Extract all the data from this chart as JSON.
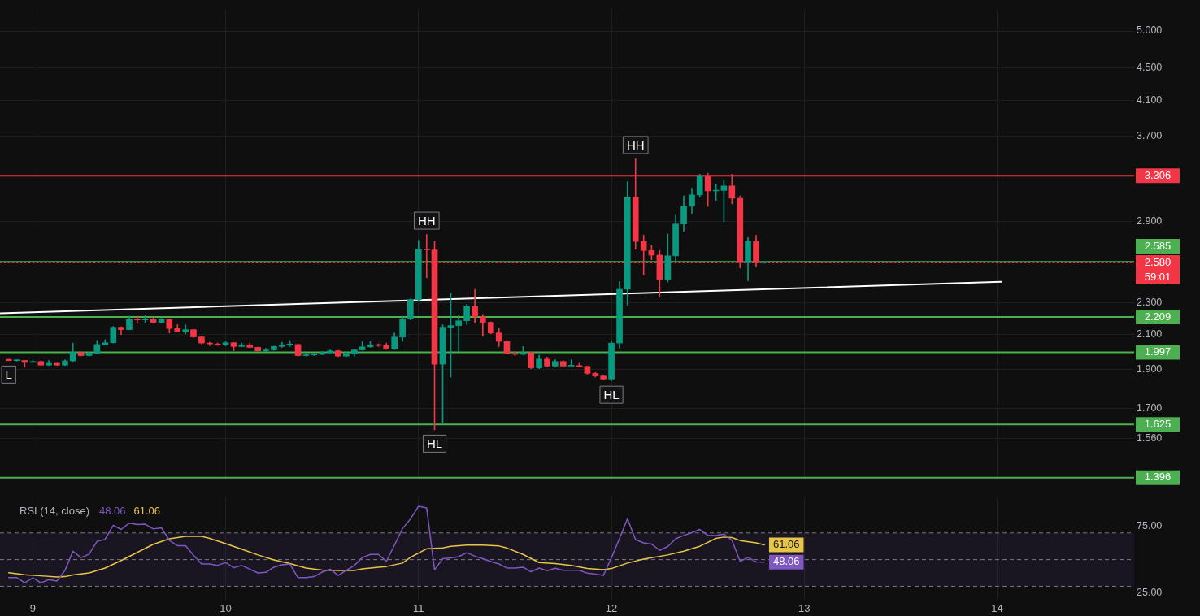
{
  "chart_data": [
    {
      "type": "candlestick",
      "x": [
        8.875,
        8.917,
        8.958,
        9,
        9.042,
        9.083,
        9.125,
        9.167,
        9.208,
        9.25,
        9.292,
        9.333,
        9.375,
        9.417,
        9.458,
        9.5,
        9.542,
        9.583,
        9.625,
        9.667,
        9.708,
        9.75,
        9.792,
        9.833,
        9.875,
        9.917,
        9.958,
        10,
        10.042,
        10.083,
        10.125,
        10.167,
        10.208,
        10.25,
        10.292,
        10.333,
        10.375,
        10.417,
        10.458,
        10.5,
        10.542,
        10.583,
        10.625,
        10.667,
        10.708,
        10.75,
        10.792,
        10.833,
        10.875,
        10.917,
        10.958,
        11,
        11.042,
        11.083,
        11.125,
        11.167,
        11.208,
        11.25,
        11.292,
        11.333,
        11.375,
        11.417,
        11.458,
        11.5,
        11.542,
        11.583,
        11.625,
        11.667,
        11.708,
        11.75,
        11.792,
        11.833,
        11.875,
        11.917,
        11.958,
        12,
        12.042,
        12.083,
        12.125,
        12.167,
        12.208,
        12.25,
        12.292,
        12.333,
        12.375,
        12.417,
        12.458,
        12.5,
        12.542,
        12.583,
        12.625,
        12.667,
        12.708,
        12.75,
        12.792
      ],
      "ohlc": [
        [
          1.957,
          1.958,
          1.949,
          1.95
        ],
        [
          1.95,
          1.955,
          1.947,
          1.951
        ],
        [
          1.951,
          1.952,
          1.914,
          1.94
        ],
        [
          1.94,
          1.95,
          1.938,
          1.945
        ],
        [
          1.945,
          1.948,
          1.922,
          1.925
        ],
        [
          1.925,
          1.95,
          1.922,
          1.935
        ],
        [
          1.935,
          1.936,
          1.923,
          1.925
        ],
        [
          1.925,
          1.955,
          1.922,
          1.948
        ],
        [
          1.948,
          2.05,
          1.944,
          1.996
        ],
        [
          1.996,
          1.998,
          1.976,
          1.978
        ],
        [
          1.978,
          1.998,
          1.975,
          1.992
        ],
        [
          1.992,
          2.066,
          1.99,
          2.042
        ],
        [
          2.042,
          2.07,
          2.038,
          2.052
        ],
        [
          2.052,
          2.15,
          2.05,
          2.145
        ],
        [
          2.145,
          2.148,
          2.1,
          2.13
        ],
        [
          2.13,
          2.215,
          2.13,
          2.196
        ],
        [
          2.196,
          2.215,
          2.17,
          2.19
        ],
        [
          2.19,
          2.22,
          2.175,
          2.195
        ],
        [
          2.195,
          2.205,
          2.172,
          2.175
        ],
        [
          2.175,
          2.2,
          2.17,
          2.195
        ],
        [
          2.195,
          2.197,
          2.11,
          2.137
        ],
        [
          2.137,
          2.16,
          2.116,
          2.12
        ],
        [
          2.12,
          2.16,
          2.105,
          2.13
        ],
        [
          2.13,
          2.133,
          2.082,
          2.086
        ],
        [
          2.086,
          2.09,
          2.045,
          2.05
        ],
        [
          2.05,
          2.055,
          2.035,
          2.045
        ],
        [
          2.045,
          2.05,
          2.036,
          2.04
        ],
        [
          2.04,
          2.06,
          2.034,
          2.052
        ],
        [
          2.052,
          2.054,
          2.006,
          2.03
        ],
        [
          2.03,
          2.05,
          2.028,
          2.04
        ],
        [
          2.04,
          2.05,
          2.022,
          2.025
        ],
        [
          2.025,
          2.027,
          2.003,
          2.005
        ],
        [
          2.005,
          2.02,
          2.0,
          2.01
        ],
        [
          2.01,
          2.032,
          2.007,
          2.03
        ],
        [
          2.03,
          2.055,
          2.025,
          2.04
        ],
        [
          2.04,
          2.065,
          2.03,
          2.042
        ],
        [
          2.042,
          2.046,
          1.975,
          1.978
        ],
        [
          1.978,
          1.99,
          1.975,
          1.982
        ],
        [
          1.982,
          1.99,
          1.978,
          1.985
        ],
        [
          1.985,
          2.0,
          1.982,
          1.995
        ],
        [
          1.995,
          2.01,
          1.99,
          2.005
        ],
        [
          2.005,
          2.008,
          1.972,
          1.975
        ],
        [
          1.975,
          1.998,
          1.97,
          1.99
        ],
        [
          1.99,
          2.012,
          1.975,
          2.01
        ],
        [
          2.01,
          2.058,
          2.008,
          2.028
        ],
        [
          2.028,
          2.06,
          2.025,
          2.04
        ],
        [
          2.04,
          2.045,
          2.03,
          2.036
        ],
        [
          2.036,
          2.05,
          2.012,
          2.015
        ],
        [
          2.015,
          2.11,
          2.012,
          2.085
        ],
        [
          2.085,
          2.21,
          2.06,
          2.198
        ],
        [
          2.198,
          2.325,
          2.19,
          2.32
        ],
        [
          2.32,
          2.75,
          2.31,
          2.68
        ],
        [
          2.68,
          2.795,
          2.47,
          2.675
        ],
        [
          2.675,
          2.745,
          1.6,
          1.93
        ],
        [
          1.93,
          2.16,
          1.635,
          2.145
        ],
        [
          2.145,
          2.365,
          1.86,
          2.155
        ],
        [
          2.155,
          2.22,
          2.0,
          2.185
        ],
        [
          2.185,
          2.29,
          2.16,
          2.275
        ],
        [
          2.275,
          2.39,
          2.17,
          2.21
        ],
        [
          2.21,
          2.225,
          2.09,
          2.175
        ],
        [
          2.175,
          2.178,
          2.105,
          2.11
        ],
        [
          2.11,
          2.14,
          2.03,
          2.06
        ],
        [
          2.06,
          2.065,
          1.987,
          1.99
        ],
        [
          1.99,
          2.0,
          1.978,
          1.985
        ],
        [
          1.985,
          2.03,
          1.982,
          1.995
        ],
        [
          1.995,
          1.997,
          1.905,
          1.91
        ],
        [
          1.91,
          1.98,
          1.905,
          1.958
        ],
        [
          1.958,
          1.97,
          1.915,
          1.92
        ],
        [
          1.92,
          1.955,
          1.915,
          1.945
        ],
        [
          1.945,
          1.95,
          1.915,
          1.92
        ],
        [
          1.92,
          1.955,
          1.918,
          1.922
        ],
        [
          1.922,
          1.935,
          1.915,
          1.918
        ],
        [
          1.918,
          1.92,
          1.875,
          1.88
        ],
        [
          1.88,
          1.885,
          1.86,
          1.866
        ],
        [
          1.866,
          1.87,
          1.845,
          1.85
        ],
        [
          1.85,
          2.065,
          1.84,
          2.05
        ],
        [
          2.05,
          2.445,
          2.02,
          2.39
        ],
        [
          2.39,
          3.25,
          2.285,
          3.11
        ],
        [
          3.11,
          3.47,
          2.68,
          2.74
        ],
        [
          2.74,
          2.79,
          2.49,
          2.67
        ],
        [
          2.67,
          2.71,
          2.6,
          2.635
        ],
        [
          2.635,
          2.67,
          2.34,
          2.46
        ],
        [
          2.46,
          2.8,
          2.44,
          2.63
        ],
        [
          2.63,
          2.96,
          2.59,
          2.88
        ],
        [
          2.88,
          3.12,
          2.82,
          3.03
        ],
        [
          3.03,
          3.19,
          2.97,
          3.13
        ],
        [
          3.13,
          3.32,
          3.11,
          3.3
        ],
        [
          3.3,
          3.33,
          3.03,
          3.165
        ],
        [
          3.165,
          3.23,
          3.08,
          3.17
        ],
        [
          3.17,
          3.27,
          2.9,
          3.21
        ],
        [
          3.21,
          3.32,
          3.05,
          3.1
        ],
        [
          3.1,
          3.12,
          2.54,
          2.58
        ],
        [
          2.58,
          2.77,
          2.45,
          2.74
        ],
        [
          2.74,
          2.79,
          2.55,
          2.58
        ],
        [
          2.58,
          2.59,
          2.575,
          2.58
        ]
      ],
      "series": [
        {
          "type": "line",
          "color": "#ffffff",
          "x": [
            8.83,
            14.02
          ],
          "values": [
            2.232,
            2.442
          ]
        }
      ],
      "xlim": [
        8.83,
        14.71
      ],
      "xticks": [
        9,
        10,
        11,
        12,
        13,
        14
      ],
      "ylim": [
        1.39,
        5.33
      ],
      "log": "y",
      "yticks": [
        {
          "value": 5,
          "label": "5.000"
        },
        {
          "value": 4.5,
          "label": "4.500"
        },
        {
          "value": 4.1,
          "label": "4.100"
        },
        {
          "value": 3.7,
          "label": "3.700"
        },
        {
          "value": 2.9,
          "label": "2.900"
        },
        {
          "value": 2.3,
          "label": "2.300"
        },
        {
          "value": 2.1,
          "label": "2.100"
        },
        {
          "value": 1.9,
          "label": "1.900"
        },
        {
          "value": 1.7,
          "label": "1.700"
        },
        {
          "value": 1.56,
          "label": "1.560"
        }
      ],
      "grid": true,
      "tick_labels": "y",
      "ref_lines": [
        {
          "axis": "y",
          "value": 3.306,
          "label": "3.306",
          "color": "#f23645"
        },
        {
          "axis": "y",
          "value": 2.585,
          "label": "2.585",
          "color": "#4caf50"
        },
        {
          "axis": "y",
          "value": 2.58,
          "label": "2.580\n59:01",
          "color": "#f23645",
          "line_style": "dotted"
        },
        {
          "axis": "y",
          "value": 2.209,
          "label": "2.209",
          "color": "#4caf50"
        },
        {
          "axis": "y",
          "value": 1.997,
          "label": "1.997",
          "color": "#4caf50"
        },
        {
          "axis": "y",
          "value": 1.625,
          "label": "1.625",
          "color": "#4caf50"
        },
        {
          "axis": "y",
          "value": 1.396,
          "label": "1.396",
          "color": "#4caf50"
        }
      ],
      "annotations": [
        {
          "text": "L",
          "x": 8.875,
          "y": 1.949
        },
        {
          "text": "HH",
          "x": 11.042,
          "y": 2.795
        },
        {
          "text": "HL",
          "x": 11.083,
          "y": 1.6
        },
        {
          "text": "HL",
          "x": 12,
          "y": 1.84
        },
        {
          "text": "HH",
          "x": 12.125,
          "y": 3.47
        }
      ]
    },
    {
      "type": "line",
      "title": "RSI (14, close)",
      "x": [
        8.875,
        8.917,
        8.958,
        9,
        9.042,
        9.083,
        9.125,
        9.167,
        9.208,
        9.25,
        9.292,
        9.333,
        9.375,
        9.417,
        9.458,
        9.5,
        9.542,
        9.583,
        9.625,
        9.667,
        9.708,
        9.75,
        9.792,
        9.833,
        9.875,
        9.917,
        9.958,
        10,
        10.042,
        10.083,
        10.125,
        10.167,
        10.208,
        10.25,
        10.292,
        10.333,
        10.375,
        10.417,
        10.458,
        10.5,
        10.542,
        10.583,
        10.625,
        10.667,
        10.708,
        10.75,
        10.792,
        10.833,
        10.875,
        10.917,
        10.958,
        11,
        11.042,
        11.083,
        11.125,
        11.167,
        11.208,
        11.25,
        11.292,
        11.333,
        11.375,
        11.417,
        11.458,
        11.5,
        11.542,
        11.583,
        11.625,
        11.667,
        11.708,
        11.75,
        11.792,
        11.833,
        11.875,
        11.917,
        11.958,
        12,
        12.042,
        12.083,
        12.125,
        12.167,
        12.208,
        12.25,
        12.292,
        12.333,
        12.375,
        12.417,
        12.458,
        12.5,
        12.542,
        12.583,
        12.625,
        12.667,
        12.708,
        12.75,
        12.792
      ],
      "series": [
        {
          "color": "#7e57c2",
          "values": [
            36.5,
            36.5,
            32.6,
            36.3,
            32.6,
            35.0,
            33.9,
            41.9,
            56.3,
            51.5,
            54.1,
            63.7,
            65.2,
            75.7,
            72.6,
            77.4,
            76.3,
            76.5,
            73.0,
            73.9,
            64.4,
            60.4,
            60.4,
            53.3,
            46.7,
            46.7,
            45.7,
            47.8,
            43.9,
            45.6,
            42.8,
            40.0,
            40.4,
            44.3,
            46.1,
            46.7,
            36.5,
            36.5,
            37.2,
            40.6,
            42.8,
            38.1,
            41.9,
            45.6,
            51.5,
            53.9,
            53.9,
            48.7,
            60.9,
            73.3,
            80.4,
            90.0,
            88.7,
            42.4,
            50.7,
            51.3,
            52.2,
            55.2,
            52.6,
            50.7,
            48.5,
            46.7,
            43.7,
            43.7,
            44.3,
            40.9,
            43.7,
            41.7,
            43.5,
            42.0,
            42.0,
            42.0,
            39.8,
            39.1,
            38.1,
            51.3,
            65.9,
            80.7,
            65.0,
            62.6,
            61.7,
            56.9,
            59.8,
            65.6,
            68.1,
            70.2,
            72.6,
            68.1,
            68.1,
            69.1,
            64.4,
            48.7,
            51.7,
            48.3,
            48.06
          ],
          "value_labels": [
            null,
            null,
            null,
            null,
            null,
            null,
            null,
            null,
            null,
            null,
            null,
            null,
            null,
            null,
            null,
            null,
            null,
            null,
            null,
            null,
            null,
            null,
            null,
            null,
            null,
            null,
            null,
            null,
            null,
            null,
            null,
            null,
            null,
            null,
            null,
            null,
            null,
            null,
            null,
            null,
            null,
            null,
            null,
            null,
            null,
            null,
            null,
            null,
            null,
            null,
            null,
            null,
            null,
            null,
            null,
            null,
            null,
            null,
            null,
            null,
            null,
            null,
            null,
            null,
            null,
            null,
            null,
            null,
            null,
            null,
            null,
            null,
            null,
            null,
            null,
            null,
            null,
            null,
            null,
            null,
            null,
            null,
            null,
            null,
            null,
            null,
            null,
            null,
            null,
            null,
            null,
            null,
            null,
            null,
            "48.06"
          ]
        },
        {
          "color": "#e8c547",
          "x": [
            8.875,
            8.958,
            9.042,
            9.125,
            9.167,
            9.208,
            9.292,
            9.375,
            9.458,
            9.542,
            9.625,
            9.708,
            9.792,
            9.875,
            9.917,
            10,
            10.083,
            10.167,
            10.25,
            10.333,
            10.417,
            10.5,
            10.583,
            10.667,
            10.708,
            10.792,
            10.833,
            10.917,
            10.958,
            11.042,
            11.125,
            11.167,
            11.25,
            11.333,
            11.417,
            11.458,
            11.542,
            11.625,
            11.708,
            11.792,
            11.875,
            11.958,
            12,
            12.083,
            12.167,
            12.292,
            12.375,
            12.458,
            12.542,
            12.583,
            12.625,
            12.667,
            12.75,
            12.792
          ],
          "values": [
            40.2,
            38.7,
            37.8,
            36.9,
            37.2,
            38.5,
            40.0,
            43.7,
            49.3,
            55.4,
            61.5,
            65.6,
            67.4,
            67.4,
            65.9,
            61.9,
            57.8,
            53.5,
            49.8,
            47.0,
            43.7,
            42.2,
            41.9,
            41.9,
            43.0,
            44.3,
            44.8,
            47.4,
            51.7,
            58.1,
            58.7,
            60.0,
            60.9,
            60.9,
            60.2,
            58.7,
            53.9,
            47.8,
            47.0,
            45.6,
            43.3,
            42.4,
            43.3,
            47.4,
            50.4,
            53.5,
            56.3,
            60.0,
            65.9,
            66.9,
            66.5,
            64.3,
            62.6,
            61.06
          ],
          "value_labels": [
            null,
            null,
            null,
            null,
            null,
            null,
            null,
            null,
            null,
            null,
            null,
            null,
            null,
            null,
            null,
            null,
            null,
            null,
            null,
            null,
            null,
            null,
            null,
            null,
            null,
            null,
            null,
            null,
            null,
            null,
            null,
            null,
            null,
            null,
            null,
            null,
            null,
            null,
            null,
            null,
            null,
            null,
            null,
            null,
            null,
            null,
            null,
            null,
            null,
            null,
            null,
            null,
            null,
            "61.06"
          ]
        }
      ],
      "xlim": [
        8.83,
        14.71
      ],
      "xticks": [
        9,
        10,
        11,
        12,
        13,
        14
      ],
      "ylim": [
        19.9,
        97.6
      ],
      "yticks": [
        {
          "value": 75,
          "label": "75.00"
        },
        {
          "value": 25,
          "label": "25.00"
        }
      ],
      "grid": "x",
      "bands": [
        {
          "axis": "y",
          "from": 30,
          "to": 70,
          "color": "#7e57c2"
        }
      ],
      "ref_lines": [
        {
          "axis": "y",
          "value": 70,
          "color": "#787b86",
          "line_style": "dashed"
        },
        {
          "axis": "y",
          "value": 50,
          "color": "#787b86",
          "line_style": "dashed"
        },
        {
          "axis": "y",
          "value": 30,
          "color": "#787b86",
          "line_style": "dashed"
        }
      ]
    }
  ]
}
